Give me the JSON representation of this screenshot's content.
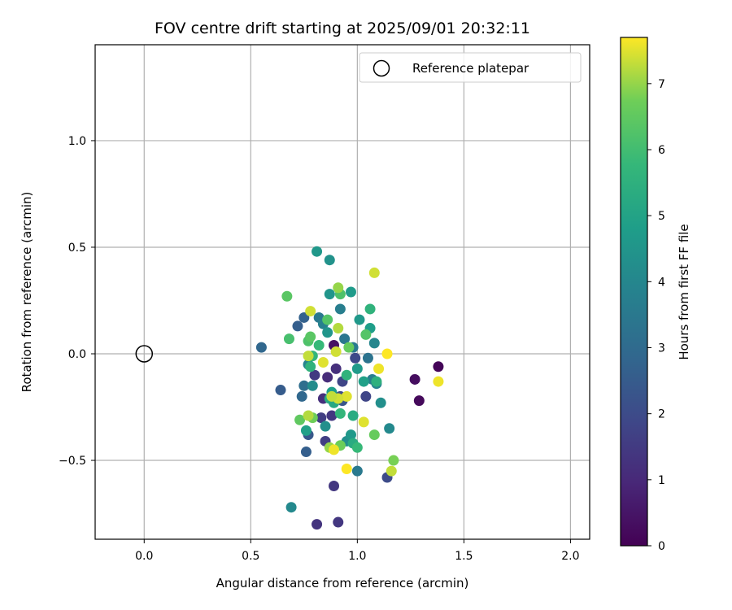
{
  "chart_data": {
    "type": "scatter",
    "title": "FOV centre drift starting at 2025/09/01 20:32:11",
    "xlabel": "Angular distance from reference (arcmin)",
    "ylabel": "Rotation from reference (arcmin)",
    "xlim": [
      -0.23,
      2.09
    ],
    "ylim": [
      -0.87,
      1.45
    ],
    "xticks": [
      0.0,
      0.5,
      1.0,
      1.5,
      2.0
    ],
    "xtick_labels": [
      "0.0",
      "0.5",
      "1.0",
      "1.5",
      "2.0"
    ],
    "yticks": [
      1.0,
      0.5,
      0.0,
      -0.5
    ],
    "ytick_labels": [
      "1.0",
      "0.5",
      "0.0",
      "−0.5"
    ],
    "grid": true,
    "legend": {
      "position": "top-right",
      "entries": [
        "Reference platepar"
      ]
    },
    "reference_point": {
      "x": 0.0,
      "y": 0.0
    },
    "colorbar": {
      "label": "Hours from first FF file",
      "range": [
        0,
        7.7
      ],
      "ticks": [
        0,
        1,
        2,
        3,
        4,
        5,
        6,
        7
      ],
      "tick_labels": [
        "0",
        "1",
        "2",
        "3",
        "4",
        "5",
        "6",
        "7"
      ],
      "colormap": "viridis"
    },
    "points": [
      {
        "x": 1.38,
        "y": -0.06,
        "h": 0.1
      },
      {
        "x": 1.27,
        "y": -0.12,
        "h": 0.3
      },
      {
        "x": 1.29,
        "y": -0.22,
        "h": 0.2
      },
      {
        "x": 0.89,
        "y": 0.04,
        "h": 0.4
      },
      {
        "x": 0.91,
        "y": -0.79,
        "h": 1.4
      },
      {
        "x": 0.81,
        "y": -0.8,
        "h": 1.3
      },
      {
        "x": 0.89,
        "y": -0.62,
        "h": 1.4
      },
      {
        "x": 1.14,
        "y": -0.58,
        "h": 2.0
      },
      {
        "x": 0.85,
        "y": -0.41,
        "h": 1.6
      },
      {
        "x": 0.84,
        "y": -0.21,
        "h": 1.2
      },
      {
        "x": 0.88,
        "y": -0.29,
        "h": 1.4
      },
      {
        "x": 0.83,
        "y": -0.3,
        "h": 1.6
      },
      {
        "x": 0.8,
        "y": -0.1,
        "h": 1.5
      },
      {
        "x": 0.86,
        "y": -0.11,
        "h": 1.1
      },
      {
        "x": 0.9,
        "y": -0.07,
        "h": 1.2
      },
      {
        "x": 0.93,
        "y": -0.13,
        "h": 1.8
      },
      {
        "x": 1.04,
        "y": -0.2,
        "h": 1.8
      },
      {
        "x": 0.99,
        "y": -0.02,
        "h": 1.9
      },
      {
        "x": 0.92,
        "y": -0.2,
        "h": 2.0
      },
      {
        "x": 0.93,
        "y": -0.22,
        "h": 2.3
      },
      {
        "x": 0.77,
        "y": -0.38,
        "h": 2.4
      },
      {
        "x": 0.76,
        "y": -0.46,
        "h": 2.6
      },
      {
        "x": 0.64,
        "y": -0.17,
        "h": 2.5
      },
      {
        "x": 0.55,
        "y": 0.03,
        "h": 2.9
      },
      {
        "x": 0.72,
        "y": 0.13,
        "h": 2.6
      },
      {
        "x": 0.75,
        "y": 0.17,
        "h": 2.7
      },
      {
        "x": 0.74,
        "y": -0.2,
        "h": 2.9
      },
      {
        "x": 0.75,
        "y": -0.15,
        "h": 3.1
      },
      {
        "x": 1.0,
        "y": -0.55,
        "h": 3.5
      },
      {
        "x": 1.15,
        "y": -0.35,
        "h": 4.1
      },
      {
        "x": 0.69,
        "y": -0.72,
        "h": 4.1
      },
      {
        "x": 0.82,
        "y": 0.17,
        "h": 3.5
      },
      {
        "x": 0.84,
        "y": 0.14,
        "h": 3.8
      },
      {
        "x": 0.92,
        "y": 0.21,
        "h": 3.7
      },
      {
        "x": 0.94,
        "y": 0.07,
        "h": 3.4
      },
      {
        "x": 0.98,
        "y": 0.03,
        "h": 3.6
      },
      {
        "x": 1.05,
        "y": -0.02,
        "h": 3.3
      },
      {
        "x": 1.07,
        "y": -0.12,
        "h": 3.7
      },
      {
        "x": 1.09,
        "y": -0.14,
        "h": 3.9
      },
      {
        "x": 1.11,
        "y": -0.23,
        "h": 4.3
      },
      {
        "x": 1.08,
        "y": 0.05,
        "h": 4.0
      },
      {
        "x": 0.77,
        "y": -0.05,
        "h": 3.9
      },
      {
        "x": 0.79,
        "y": -0.15,
        "h": 4.2
      },
      {
        "x": 0.85,
        "y": -0.34,
        "h": 4.3
      },
      {
        "x": 0.95,
        "y": -0.41,
        "h": 4.3
      },
      {
        "x": 0.97,
        "y": -0.38,
        "h": 4.6
      },
      {
        "x": 0.81,
        "y": 0.48,
        "h": 4.6
      },
      {
        "x": 0.87,
        "y": 0.44,
        "h": 4.4
      },
      {
        "x": 0.87,
        "y": 0.28,
        "h": 4.5
      },
      {
        "x": 0.97,
        "y": 0.29,
        "h": 4.7
      },
      {
        "x": 0.86,
        "y": 0.1,
        "h": 4.5
      },
      {
        "x": 1.01,
        "y": 0.16,
        "h": 4.6
      },
      {
        "x": 1.06,
        "y": 0.12,
        "h": 4.8
      },
      {
        "x": 1.0,
        "y": -0.07,
        "h": 4.7
      },
      {
        "x": 1.03,
        "y": -0.13,
        "h": 4.9
      },
      {
        "x": 0.88,
        "y": -0.18,
        "h": 4.8
      },
      {
        "x": 0.76,
        "y": -0.36,
        "h": 4.9
      },
      {
        "x": 0.98,
        "y": -0.29,
        "h": 5.3
      },
      {
        "x": 0.98,
        "y": -0.42,
        "h": 5.3
      },
      {
        "x": 1.06,
        "y": 0.21,
        "h": 5.6
      },
      {
        "x": 1.09,
        "y": -0.13,
        "h": 5.5
      },
      {
        "x": 0.78,
        "y": -0.06,
        "h": 5.6
      },
      {
        "x": 0.87,
        "y": -0.21,
        "h": 5.3
      },
      {
        "x": 0.89,
        "y": -0.23,
        "h": 5.2
      },
      {
        "x": 0.92,
        "y": -0.28,
        "h": 5.7
      },
      {
        "x": 0.95,
        "y": -0.1,
        "h": 5.6
      },
      {
        "x": 0.82,
        "y": 0.04,
        "h": 5.8
      },
      {
        "x": 0.79,
        "y": -0.01,
        "h": 5.7
      },
      {
        "x": 1.0,
        "y": -0.44,
        "h": 5.8
      },
      {
        "x": 0.67,
        "y": 0.27,
        "h": 6.4
      },
      {
        "x": 0.68,
        "y": 0.07,
        "h": 6.1
      },
      {
        "x": 0.77,
        "y": 0.06,
        "h": 6.2
      },
      {
        "x": 0.78,
        "y": 0.08,
        "h": 6.4
      },
      {
        "x": 0.86,
        "y": 0.16,
        "h": 6.3
      },
      {
        "x": 0.92,
        "y": 0.28,
        "h": 6.2
      },
      {
        "x": 1.04,
        "y": 0.09,
        "h": 6.3
      },
      {
        "x": 0.96,
        "y": 0.03,
        "h": 6.6
      },
      {
        "x": 0.73,
        "y": -0.31,
        "h": 6.5
      },
      {
        "x": 0.79,
        "y": -0.3,
        "h": 6.7
      },
      {
        "x": 0.92,
        "y": -0.43,
        "h": 6.7
      },
      {
        "x": 1.08,
        "y": -0.38,
        "h": 6.6
      },
      {
        "x": 1.17,
        "y": -0.5,
        "h": 6.8
      },
      {
        "x": 0.87,
        "y": -0.44,
        "h": 7.0
      },
      {
        "x": 0.91,
        "y": 0.31,
        "h": 7.0
      },
      {
        "x": 0.91,
        "y": 0.12,
        "h": 7.2
      },
      {
        "x": 0.9,
        "y": 0.01,
        "h": 7.4
      },
      {
        "x": 0.84,
        "y": -0.04,
        "h": 7.5
      },
      {
        "x": 0.77,
        "y": -0.01,
        "h": 7.3
      },
      {
        "x": 0.78,
        "y": 0.2,
        "h": 7.4
      },
      {
        "x": 1.08,
        "y": 0.38,
        "h": 7.4
      },
      {
        "x": 1.14,
        "y": 0.0,
        "h": 7.7
      },
      {
        "x": 1.1,
        "y": -0.07,
        "h": 7.6
      },
      {
        "x": 0.95,
        "y": -0.2,
        "h": 7.5
      },
      {
        "x": 0.91,
        "y": -0.21,
        "h": 7.4
      },
      {
        "x": 0.88,
        "y": -0.2,
        "h": 7.3
      },
      {
        "x": 0.77,
        "y": -0.29,
        "h": 7.2
      },
      {
        "x": 1.03,
        "y": -0.32,
        "h": 7.5
      },
      {
        "x": 0.89,
        "y": -0.45,
        "h": 7.6
      },
      {
        "x": 0.95,
        "y": -0.54,
        "h": 7.7
      },
      {
        "x": 1.16,
        "y": -0.55,
        "h": 7.3
      },
      {
        "x": 1.38,
        "y": -0.13,
        "h": 7.6
      }
    ]
  }
}
